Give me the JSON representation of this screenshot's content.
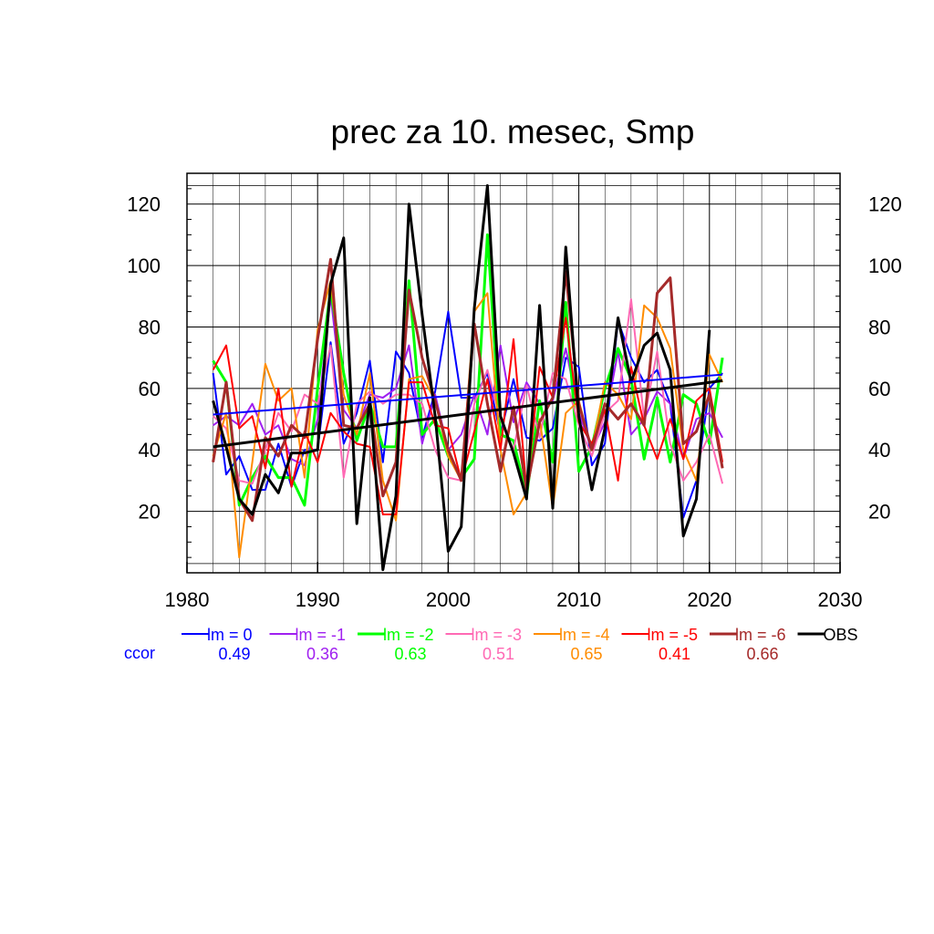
{
  "chart_data": {
    "type": "line",
    "title": "prec za 10. mesec, Smp",
    "xlabel": "",
    "ylabel": "",
    "xlim": [
      1980,
      2030
    ],
    "ylim": [
      0,
      130
    ],
    "x_ticks": [
      1980,
      1990,
      2000,
      2010,
      2020,
      2030
    ],
    "y_ticks": [
      20,
      40,
      60,
      80,
      100,
      120
    ],
    "grid": true,
    "legend_position": "bottom",
    "ccor_label": "ccor",
    "x": [
      1982,
      1983,
      1984,
      1985,
      1986,
      1987,
      1988,
      1989,
      1990,
      1991,
      1992,
      1993,
      1994,
      1995,
      1996,
      1997,
      1998,
      1999,
      2000,
      2001,
      2002,
      2003,
      2004,
      2005,
      2006,
      2007,
      2008,
      2009,
      2010,
      2011,
      2012,
      2013,
      2014,
      2015,
      2016,
      2017,
      2018,
      2019,
      2020,
      2021
    ],
    "series": [
      {
        "name": "lm = 0",
        "color": "#0000ff",
        "ccor": "0.49",
        "width": 2,
        "values": [
          65,
          32,
          38,
          27,
          27,
          42,
          28,
          40,
          40,
          75,
          42,
          52,
          69,
          36,
          72,
          65,
          44,
          59,
          85,
          57,
          57,
          65,
          45,
          63,
          44,
          43,
          47,
          70,
          67,
          35,
          42,
          82,
          70,
          62,
          66,
          55,
          18,
          30,
          60,
          65
        ],
        "trend": [
          51.5,
          64.5
        ]
      },
      {
        "name": "lm = -1",
        "color": "#a020f0",
        "ccor": "0.36",
        "width": 2,
        "values": [
          48,
          51,
          48,
          55,
          45,
          48,
          37,
          35,
          50,
          90,
          53,
          47,
          58,
          57,
          60,
          74,
          42,
          58,
          40,
          45,
          58,
          45,
          74,
          49,
          62,
          55,
          56,
          73,
          52,
          40,
          49,
          72,
          45,
          50,
          59,
          55,
          37,
          50,
          52,
          44
        ]
      },
      {
        "name": "lm = -2",
        "color": "#00ff00",
        "ccor": "0.63",
        "width": 3,
        "values": [
          69,
          62,
          22,
          31,
          38,
          31,
          31,
          22,
          60,
          92,
          65,
          43,
          55,
          41,
          41,
          95,
          45,
          50,
          38,
          31,
          37,
          110,
          45,
          43,
          25,
          56,
          36,
          88,
          33,
          41,
          60,
          73,
          63,
          37,
          57,
          36,
          58,
          55,
          42,
          70
        ]
      },
      {
        "name": "lm = -3",
        "color": "#ff69b4",
        "ccor": "0.51",
        "width": 2,
        "values": [
          51,
          47,
          30,
          29,
          40,
          52,
          46,
          58,
          55,
          74,
          31,
          55,
          59,
          55,
          58,
          58,
          55,
          40,
          31,
          30,
          55,
          66,
          50,
          40,
          61,
          44,
          65,
          63,
          48,
          38,
          52,
          56,
          89,
          50,
          72,
          42,
          30,
          36,
          45,
          29
        ]
      },
      {
        "name": "lm = -4",
        "color": "#ff8c00",
        "ccor": "0.65",
        "width": 2,
        "values": [
          38,
          52,
          5,
          36,
          68,
          56,
          60,
          31,
          79,
          95,
          58,
          45,
          65,
          30,
          17,
          63,
          64,
          56,
          38,
          30,
          85,
          91,
          40,
          19,
          26,
          50,
          21,
          52,
          56,
          40,
          62,
          58,
          50,
          87,
          83,
          73,
          40,
          30,
          71,
          62
        ]
      },
      {
        "name": "lm = -5",
        "color": "#ff0000",
        "ccor": "0.41",
        "width": 2,
        "values": [
          66,
          74,
          47,
          51,
          34,
          60,
          28,
          46,
          36,
          52,
          46,
          42,
          41,
          19,
          19,
          62,
          62,
          48,
          47,
          30,
          46,
          63,
          40,
          76,
          27,
          67,
          57,
          83,
          49,
          42,
          53,
          30,
          67,
          48,
          37,
          50,
          37,
          56,
          60,
          36
        ]
      },
      {
        "name": "lm = -6",
        "color": "#a52a2a",
        "ccor": "0.66",
        "width": 3,
        "values": [
          36,
          62,
          24,
          17,
          44,
          38,
          48,
          44,
          76,
          102,
          48,
          47,
          55,
          25,
          36,
          92,
          70,
          56,
          40,
          30,
          81,
          55,
          33,
          54,
          27,
          49,
          57,
          98,
          55,
          40,
          55,
          50,
          55,
          48,
          91,
          96,
          42,
          46,
          58,
          34
        ]
      },
      {
        "name": "OBS",
        "color": "#000000",
        "ccor": "",
        "width": 3,
        "values": [
          56,
          41,
          24,
          19,
          32,
          26,
          39,
          39,
          40,
          94,
          109,
          16,
          57,
          1,
          25,
          120,
          84,
          51,
          7,
          15,
          86,
          126,
          51,
          39,
          24,
          87,
          21,
          106,
          51,
          27,
          47,
          83,
          62,
          74,
          78,
          66,
          12,
          24,
          79,
          null
        ],
        "trend": [
          41,
          62.5
        ]
      }
    ]
  }
}
